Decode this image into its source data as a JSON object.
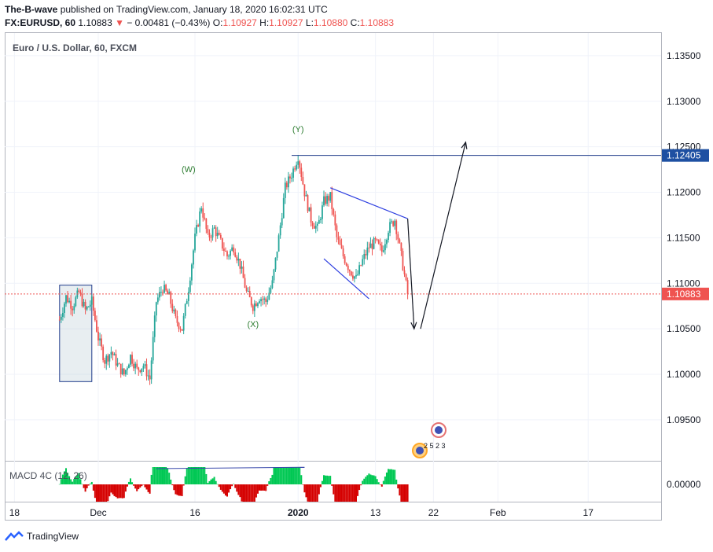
{
  "header": {
    "author": "The-B-wave",
    "published_text": "published on TradingView.com, January 18, 2020 16:02:31 UTC",
    "symbol": "FX:EURUSD, 60",
    "last": "1.10883",
    "change": "− 0.00481 (−0.43%)",
    "o_label": "O:",
    "o_value": "1.10927",
    "h_label": "H:",
    "h_value": "1.10927",
    "l_label": "L:",
    "l_value": "1.10880",
    "c_label": "C:",
    "c_value": "1.10883"
  },
  "footer": {
    "brand": "TradingView"
  },
  "colors": {
    "up": "#26a69a",
    "down": "#ef5350",
    "macd_up": "#00c853",
    "macd_down": "#d50000",
    "level": "#1e3a8a",
    "price_tag": "#ef5350",
    "level_tag": "#1e50a2"
  },
  "chart_data": {
    "type": "candlestick",
    "title": "Euro / U.S. Dollar, 60, FXCM",
    "y_ticks": [
      "1.13500",
      "1.13000",
      "1.12500",
      "1.12000",
      "1.11500",
      "1.11000",
      "1.10500",
      "1.10000",
      "1.09500"
    ],
    "y_tick_values": [
      1.135,
      1.13,
      1.125,
      1.12,
      1.115,
      1.11,
      1.105,
      1.1,
      1.095
    ],
    "ylim": [
      1.0905,
      1.1375
    ],
    "x_ticks": [
      "18",
      "Dec",
      "16",
      "2020",
      "13",
      "22",
      "Feb",
      "17"
    ],
    "price_label": "1.10883",
    "price_value": 1.10883,
    "level_label": "1.12405",
    "level_value": 1.12405,
    "wave_labels": [
      {
        "text": "(W)",
        "day": 14,
        "price": 1.1222
      },
      {
        "text": "(X)",
        "day": 24,
        "price": 1.1052
      },
      {
        "text": "(Y)",
        "day": 31,
        "price": 1.1266
      }
    ],
    "price_path": [
      [
        -6,
        1.106
      ],
      [
        -5,
        1.1085
      ],
      [
        -4,
        1.1075
      ],
      [
        -3,
        1.109
      ],
      [
        -2,
        1.107
      ],
      [
        -1,
        1.108
      ],
      [
        0,
        1.104
      ],
      [
        1,
        1.1015
      ],
      [
        2,
        1.1025
      ],
      [
        3,
        1.101
      ],
      [
        4,
        1.1
      ],
      [
        5,
        1.102
      ],
      [
        6,
        1.1005
      ],
      [
        7,
        1.101
      ],
      [
        8,
        1.0995
      ],
      [
        9,
        1.108
      ],
      [
        10,
        1.1095
      ],
      [
        11,
        1.1085
      ],
      [
        12,
        1.106
      ],
      [
        13,
        1.105
      ],
      [
        14,
        1.1095
      ],
      [
        15,
        1.115
      ],
      [
        16,
        1.1185
      ],
      [
        17,
        1.115
      ],
      [
        18,
        1.116
      ],
      [
        19,
        1.1145
      ],
      [
        20,
        1.113
      ],
      [
        21,
        1.114
      ],
      [
        22,
        1.112
      ],
      [
        23,
        1.109
      ],
      [
        24,
        1.1075
      ],
      [
        25,
        1.1085
      ],
      [
        26,
        1.108
      ],
      [
        27,
        1.11
      ],
      [
        28,
        1.115
      ],
      [
        29,
        1.1205
      ],
      [
        30,
        1.122
      ],
      [
        31,
        1.124
      ],
      [
        32,
        1.12
      ],
      [
        33,
        1.117
      ],
      [
        34,
        1.116
      ],
      [
        35,
        1.119
      ],
      [
        36,
        1.1195
      ],
      [
        37,
        1.115
      ],
      [
        38,
        1.113
      ],
      [
        39,
        1.1115
      ],
      [
        40,
        1.1105
      ],
      [
        41,
        1.1125
      ],
      [
        42,
        1.114
      ],
      [
        43,
        1.1145
      ],
      [
        44,
        1.1135
      ],
      [
        45,
        1.116
      ],
      [
        46,
        1.117
      ],
      [
        47,
        1.113
      ],
      [
        48,
        1.1088
      ]
    ],
    "projection": [
      {
        "from": [
          48,
          1.1171
        ],
        "to": [
          49,
          1.105
        ]
      },
      {
        "from": [
          50,
          1.105
        ],
        "to": [
          57,
          1.1255
        ]
      }
    ],
    "triangle": {
      "upper": [
        [
          36,
          1.1205
        ],
        [
          48,
          1.1171
        ]
      ],
      "lower": [
        [
          35,
          1.1127
        ],
        [
          42,
          1.1083
        ]
      ]
    },
    "box": {
      "start_day": -6,
      "end_day": -1,
      "top": 1.1098,
      "bottom": 1.0992
    },
    "macd": {
      "label": "MACD 4C (12, 26)",
      "axis_label": "0.00000",
      "divergence_line": [
        [
          9,
          0.00118
        ],
        [
          32,
          0.00128
        ]
      ]
    },
    "legend": "none",
    "grid": true
  }
}
